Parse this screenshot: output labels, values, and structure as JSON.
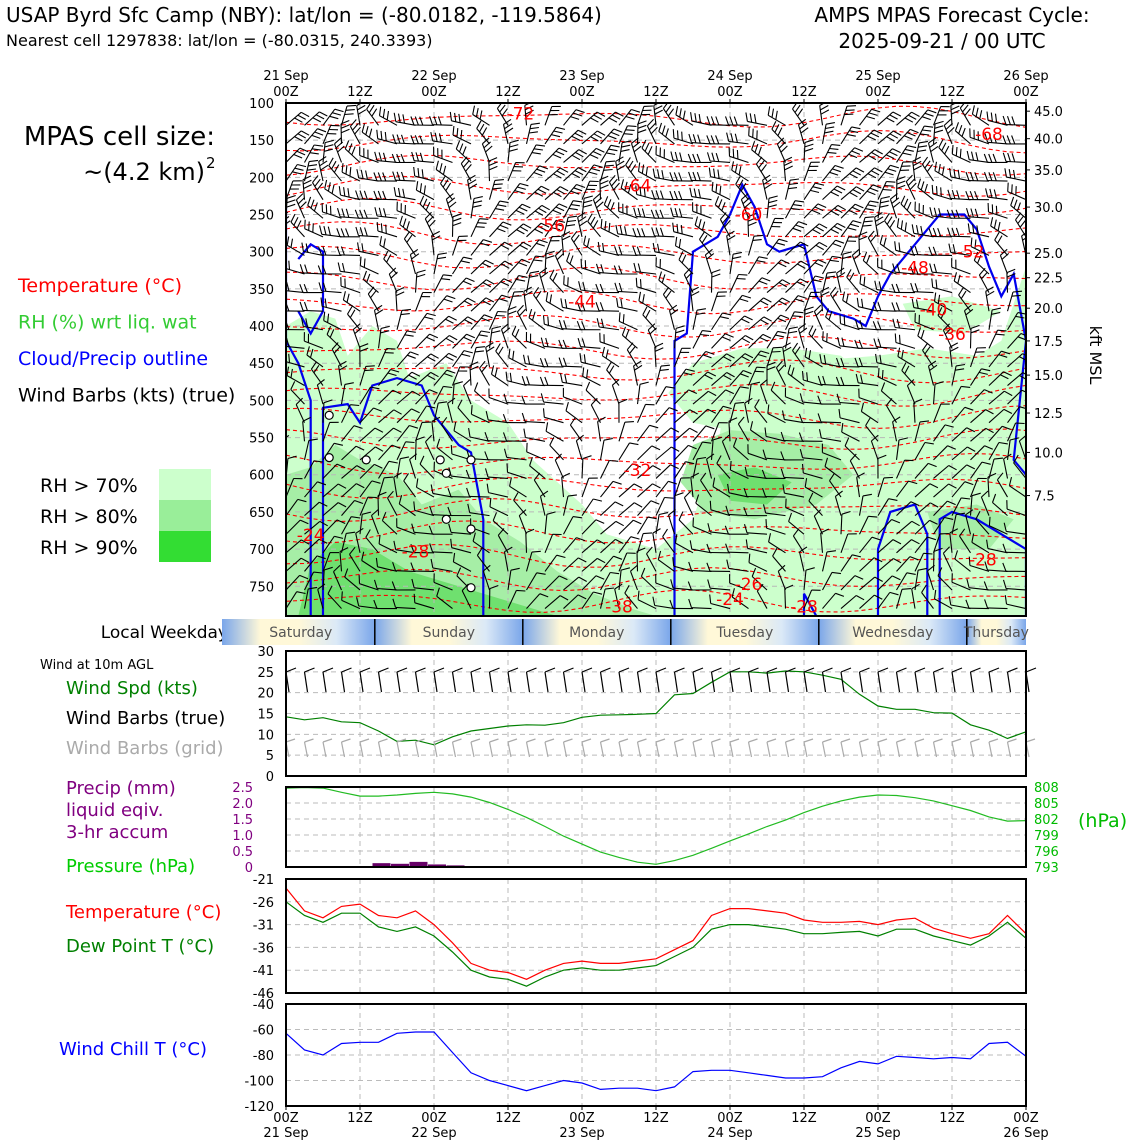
{
  "header": {
    "title_left": "USAP Byrd Sfc Camp (NBY): lat/lon = (-80.0182, -119.5864)",
    "subtitle_left": "Nearest cell 1297838: lat/lon = (-80.0315, 240.3393)",
    "title_right_1": "AMPS MPAS Forecast Cycle:",
    "title_right_2": "2025-09-21 / 00 UTC"
  },
  "left_panel": {
    "cell_size_label": "MPAS cell size:",
    "cell_size_value": "~(4.2 km)",
    "cell_size_exp": "2",
    "legend": [
      {
        "label": "Temperature (°C)",
        "color": "#ff0000"
      },
      {
        "label": "RH (%) wrt liq. wat",
        "color": "#33dd33"
      },
      {
        "label": "Cloud/Precip outline",
        "color": "#0000ff"
      },
      {
        "label": "Wind Barbs (kts) (true)",
        "color": "#000000"
      }
    ],
    "rh_levels": [
      {
        "label": "RH > 70%",
        "color": "#ccffcc"
      },
      {
        "label": "RH > 80%",
        "color": "#99ee99"
      },
      {
        "label": "RH > 90%",
        "color": "#33dd33"
      }
    ]
  },
  "time_axis": {
    "date_ticks": [
      {
        "pos": 0,
        "date": "21 Sep",
        "hour": "00Z"
      },
      {
        "pos": 12,
        "date": "",
        "hour": "12Z"
      },
      {
        "pos": 24,
        "date": "22 Sep",
        "hour": "00Z"
      },
      {
        "pos": 36,
        "date": "",
        "hour": "12Z"
      },
      {
        "pos": 48,
        "date": "23 Sep",
        "hour": "00Z"
      },
      {
        "pos": 60,
        "date": "",
        "hour": "12Z"
      },
      {
        "pos": 72,
        "date": "24 Sep",
        "hour": "00Z"
      },
      {
        "pos": 84,
        "date": "",
        "hour": "12Z"
      },
      {
        "pos": 96,
        "date": "25 Sep",
        "hour": "00Z"
      },
      {
        "pos": 108,
        "date": "",
        "hour": "12Z"
      },
      {
        "pos": 120,
        "date": "26 Sep",
        "hour": "00Z"
      }
    ]
  },
  "weekday_strip": {
    "label": "Local Weekday",
    "days": [
      "Saturday",
      "Sunday",
      "Monday",
      "Tuesday",
      "Wednesday",
      "Thursday"
    ]
  },
  "chart_data": [
    {
      "type": "heatmap",
      "name": "time-height cross section",
      "y_axis_left": [
        "100",
        "150",
        "200",
        "250",
        "300",
        "350",
        "400",
        "450",
        "500",
        "550",
        "600",
        "650",
        "700",
        "750"
      ],
      "y_axis_right": [
        "45.0",
        "40.0",
        "35.0",
        "30.0",
        "25.0",
        "22.5",
        "20.0",
        "17.5",
        "15.0",
        "12.5",
        "10.0",
        "7.5"
      ],
      "y_axis_right_pressure": [
        111,
        148,
        190,
        240,
        302,
        335,
        376,
        420,
        466,
        517,
        570,
        628
      ],
      "ylabel_right": "kft MSL",
      "ylim": [
        100,
        790
      ],
      "temperature_labels": [
        {
          "t": 38,
          "p": 122,
          "label": "-72"
        },
        {
          "t": 114,
          "p": 150,
          "label": "-68"
        },
        {
          "t": 57,
          "p": 219,
          "label": "-64"
        },
        {
          "t": 75,
          "p": 258,
          "label": "-60"
        },
        {
          "t": 43,
          "p": 273,
          "label": "-56"
        },
        {
          "t": 111,
          "p": 308,
          "label": "-52"
        },
        {
          "t": 102,
          "p": 329,
          "label": "-48"
        },
        {
          "t": 48,
          "p": 375,
          "label": "-44"
        },
        {
          "t": 105,
          "p": 386,
          "label": "-40"
        },
        {
          "t": 108,
          "p": 419,
          "label": "-36"
        },
        {
          "t": 57,
          "p": 602,
          "label": "-32"
        },
        {
          "t": 4,
          "p": 689,
          "label": "-24"
        },
        {
          "t": 21,
          "p": 711,
          "label": "-28"
        },
        {
          "t": 113,
          "p": 722,
          "label": "-28"
        },
        {
          "t": 75,
          "p": 755,
          "label": "-26"
        },
        {
          "t": 72,
          "p": 775,
          "label": "-24"
        },
        {
          "t": 54,
          "p": 790,
          "label": "-38"
        },
        {
          "t": 84,
          "p": 790,
          "label": "-28"
        }
      ]
    },
    {
      "type": "line",
      "name": "wind at 10m",
      "panel_label": "Wind at 10m AGL",
      "legend": [
        "Wind Spd (kts)",
        "Wind Barbs (true)",
        "Wind Barbs (grid)"
      ],
      "legend_colors": [
        "#008000",
        "#000000",
        "#aaaaaa"
      ],
      "yticks": [
        "0",
        "5",
        "10",
        "15",
        "20",
        "25",
        "30"
      ],
      "ylim": [
        0,
        30
      ],
      "x": [
        0,
        3,
        6,
        9,
        12,
        15,
        18,
        21,
        24,
        27,
        30,
        33,
        36,
        39,
        42,
        45,
        48,
        51,
        54,
        57,
        60,
        63,
        66,
        69,
        72,
        75,
        78,
        81,
        84,
        87,
        90,
        93,
        96,
        99,
        102,
        105,
        108,
        111,
        114,
        117,
        120
      ],
      "values": [
        14.2,
        13.5,
        14.0,
        13.0,
        12.8,
        10.8,
        8.3,
        8.6,
        7.5,
        9.4,
        10.8,
        11.4,
        12.0,
        12.3,
        12.2,
        12.8,
        14.1,
        14.6,
        14.7,
        14.8,
        15.0,
        19.5,
        19.8,
        22.5,
        25.0,
        25.0,
        24.7,
        25.2,
        25.0,
        24.2,
        23.2,
        19.6,
        16.8,
        16.0,
        16.0,
        15.2,
        15.1,
        12.3,
        11.0,
        9.0,
        10.6
      ]
    },
    {
      "type": "bar",
      "name": "precip and pressure",
      "legend": [
        "Precip (mm)",
        "liquid eqiv.",
        "3-hr accum",
        "Pressure (hPa)"
      ],
      "legend_colors": [
        "#800080",
        "#800080",
        "#800080",
        "#00cc00"
      ],
      "yticks_left": [
        "0",
        "0.5",
        "1.0",
        "1.5",
        "2.0",
        "2.5"
      ],
      "ylim_left": [
        0,
        2.5
      ],
      "yticks_right": [
        "793",
        "796",
        "799",
        "802",
        "805",
        "808"
      ],
      "ylim_right": [
        793,
        808
      ],
      "ylabel_right": "(hPa)",
      "precip_x": [
        15,
        18,
        21,
        24,
        27
      ],
      "precip_values": [
        0.12,
        0.1,
        0.16,
        0.08,
        0.05
      ],
      "pressure_x": [
        0,
        3,
        6,
        9,
        12,
        15,
        18,
        21,
        24,
        27,
        30,
        33,
        36,
        39,
        42,
        45,
        48,
        51,
        54,
        57,
        60,
        63,
        66,
        69,
        72,
        75,
        78,
        81,
        84,
        87,
        90,
        93,
        96,
        99,
        102,
        105,
        108,
        111,
        114,
        117,
        120
      ],
      "pressure_values": [
        807.8,
        807.9,
        807.8,
        807.0,
        806.3,
        806.3,
        806.5,
        806.8,
        807.0,
        806.7,
        806.1,
        805.1,
        803.8,
        802.3,
        800.6,
        798.8,
        797.3,
        795.8,
        794.8,
        793.9,
        793.5,
        794.2,
        795.2,
        796.5,
        797.9,
        799.2,
        800.6,
        801.8,
        803.2,
        804.4,
        805.4,
        806.1,
        806.5,
        806.4,
        806.0,
        805.4,
        804.5,
        803.6,
        802.4,
        801.6,
        801.7
      ]
    },
    {
      "type": "line",
      "name": "temperature and dew point",
      "legend": [
        "Temperature (°C)",
        "Dew Point T (°C)"
      ],
      "legend_colors": [
        "#ff0000",
        "#008000"
      ],
      "yticks": [
        "-46",
        "-41",
        "-36",
        "-31",
        "-26",
        "-21"
      ],
      "ylim": [
        -46,
        -21
      ],
      "x": [
        0,
        3,
        6,
        9,
        12,
        15,
        18,
        21,
        24,
        27,
        30,
        33,
        36,
        39,
        42,
        45,
        48,
        51,
        54,
        57,
        60,
        63,
        66,
        69,
        72,
        75,
        78,
        81,
        84,
        87,
        90,
        93,
        96,
        99,
        102,
        105,
        108,
        111,
        114,
        117,
        120
      ],
      "series": [
        {
          "name": "Temperature (°C)",
          "color": "#ff0000",
          "values": [
            -23.0,
            -28.0,
            -29.5,
            -27.0,
            -26.5,
            -29.0,
            -29.5,
            -28.0,
            -31.0,
            -35.0,
            -39.5,
            -41.0,
            -41.5,
            -43.0,
            -41.0,
            -39.5,
            -39.0,
            -39.5,
            -39.5,
            -39.0,
            -38.5,
            -36.5,
            -34.5,
            -29.0,
            -27.5,
            -27.5,
            -28.0,
            -28.5,
            -30.0,
            -30.5,
            -30.5,
            -30.3,
            -31.0,
            -30.0,
            -29.6,
            -31.8,
            -33.0,
            -34.0,
            -33.0,
            -29.0,
            -33.0
          ]
        },
        {
          "name": "Dew Point T (°C)",
          "color": "#008000",
          "values": [
            -26.0,
            -29.0,
            -30.5,
            -28.5,
            -28.5,
            -31.5,
            -32.5,
            -31.5,
            -33.5,
            -37.0,
            -41.0,
            -42.5,
            -43.0,
            -44.5,
            -42.5,
            -41.0,
            -40.5,
            -41.0,
            -41.0,
            -40.5,
            -40.0,
            -38.0,
            -36.0,
            -32.0,
            -31.0,
            -31.0,
            -31.5,
            -32.0,
            -33.0,
            -33.0,
            -32.7,
            -32.5,
            -33.5,
            -32.0,
            -32.0,
            -33.5,
            -34.5,
            -35.5,
            -33.5,
            -30.5,
            -34.0
          ]
        }
      ]
    },
    {
      "type": "line",
      "name": "wind chill",
      "legend": [
        "Wind Chill T (°C)"
      ],
      "legend_colors": [
        "#0000ff"
      ],
      "yticks": [
        "-120",
        "-100",
        "-80",
        "-60",
        "-40"
      ],
      "ylim": [
        -120,
        -40
      ],
      "x": [
        0,
        3,
        6,
        9,
        12,
        15,
        18,
        21,
        24,
        27,
        30,
        33,
        36,
        39,
        42,
        45,
        48,
        51,
        54,
        57,
        60,
        63,
        66,
        69,
        72,
        75,
        78,
        81,
        84,
        87,
        90,
        93,
        96,
        99,
        102,
        105,
        108,
        111,
        114,
        117,
        120
      ],
      "values": [
        -63,
        -76,
        -80,
        -71,
        -70,
        -70,
        -63,
        -62,
        -62,
        -78,
        -94,
        -100,
        -104,
        -108,
        -104,
        -100,
        -102,
        -107,
        -106,
        -106,
        -108,
        -105,
        -93,
        -92,
        -92,
        -94,
        -96,
        -98,
        -98,
        -97,
        -90,
        -85,
        -87,
        -81,
        -82,
        -83,
        -82,
        -83,
        -71,
        -70,
        -81
      ]
    }
  ]
}
